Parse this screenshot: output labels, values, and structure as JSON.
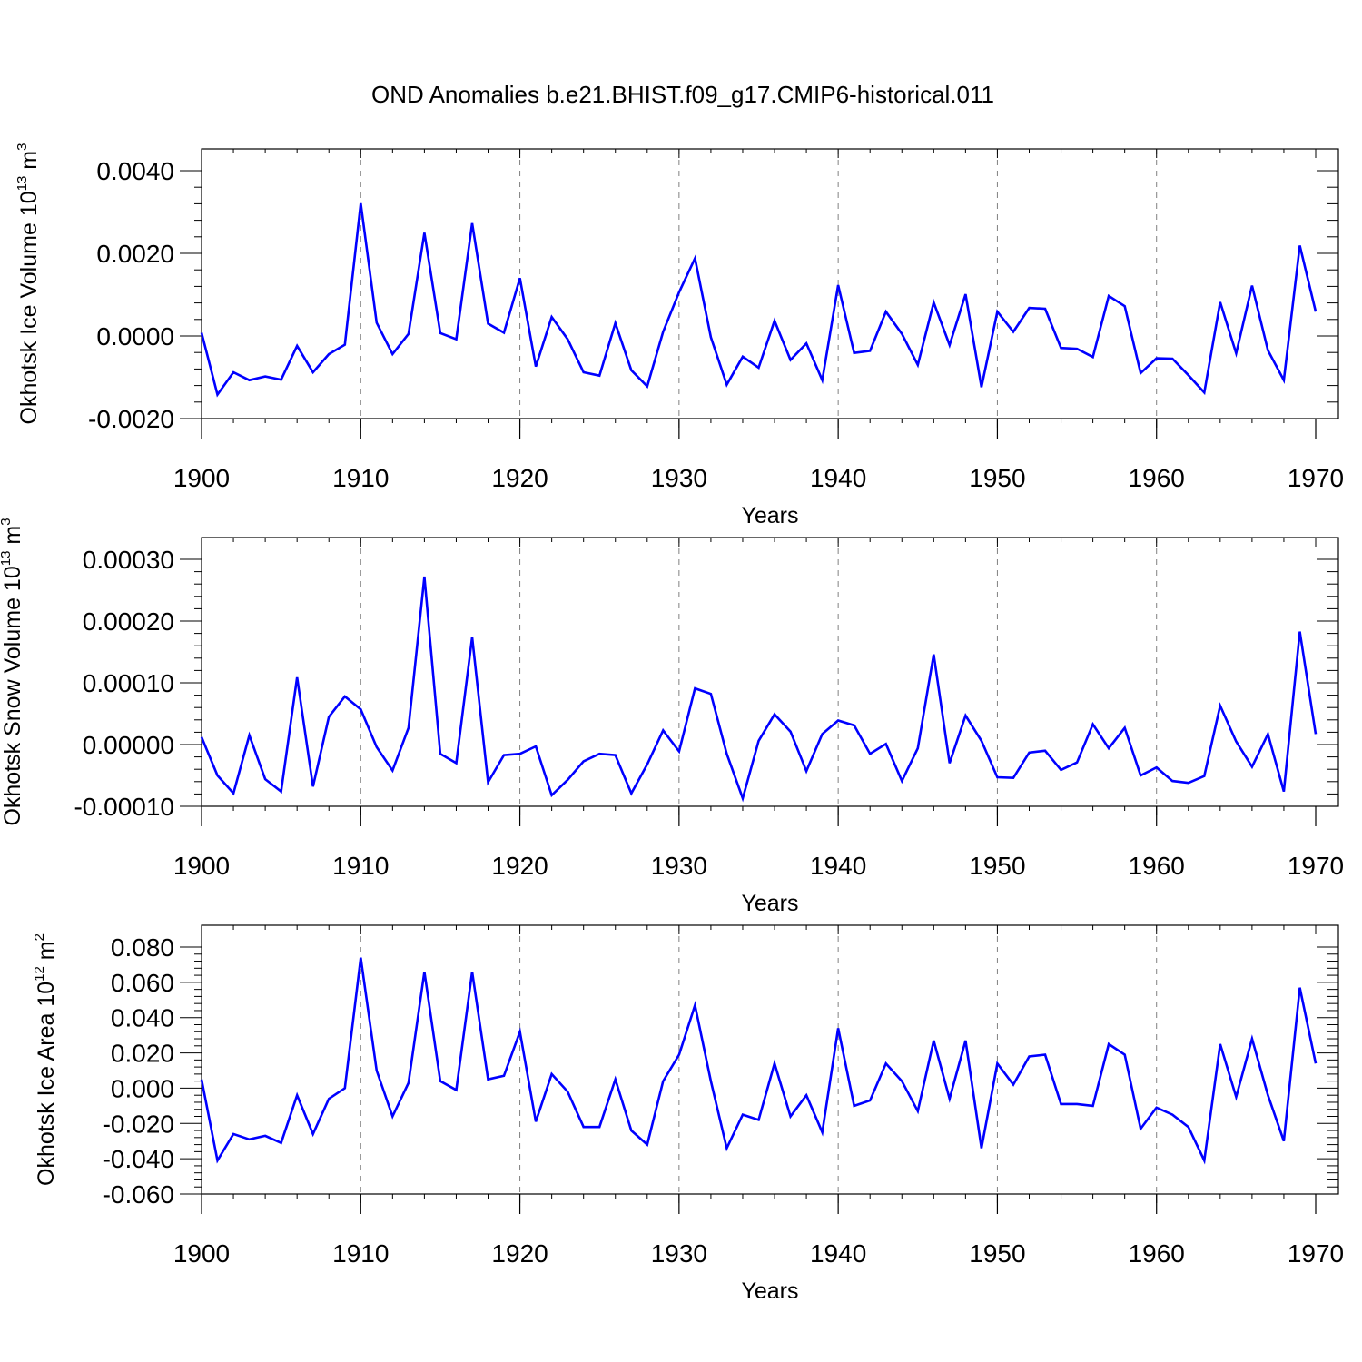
{
  "title": "OND Anomalies b.e21.BHIST.f09_g17.CMIP6-historical.011",
  "colors": {
    "line": "#0000ff",
    "axis": "#000000",
    "grid": "#808080"
  },
  "chart_data": [
    {
      "type": "line",
      "ylabel": "Okhotsk Ice Volume 10",
      "ylabel_sup1": "13",
      "ylabel_unit": " m",
      "ylabel_sup2": "3",
      "xlabel": "Years",
      "xlim": [
        1900,
        1970
      ],
      "ylim": [
        -0.002,
        0.004
      ],
      "xticks": [
        1900,
        1910,
        1920,
        1930,
        1940,
        1950,
        1960,
        1970
      ],
      "xtick_labels": [
        "1900",
        "1910",
        "1920",
        "1930",
        "1940",
        "1950",
        "1960",
        "1970"
      ],
      "yticks": [
        -0.002,
        0.0,
        0.002,
        0.004
      ],
      "ytick_labels": [
        "-0.0020",
        "0.0000",
        "0.0020",
        "0.0040"
      ],
      "grid": "x dashed",
      "x_start": 1900,
      "values": [
        8e-05,
        -0.00142,
        -0.00088,
        -0.00107,
        -0.00098,
        -0.00106,
        -0.00024,
        -0.00088,
        -0.00044,
        -0.00021,
        0.00321,
        0.00032,
        -0.00044,
        5e-05,
        0.0025,
        7e-05,
        -8e-05,
        0.00273,
        0.0003,
        8e-05,
        0.0014,
        -0.00074,
        0.00046,
        -8e-05,
        -0.00088,
        -0.00096,
        0.00031,
        -0.00083,
        -0.00122,
        0.0001,
        0.00106,
        0.00188,
        -3e-05,
        -0.00118,
        -0.0005,
        -0.00077,
        0.00037,
        -0.00058,
        -0.00018,
        -0.00107,
        0.00123,
        -0.00041,
        -0.00036,
        0.00059,
        5e-05,
        -0.0007,
        0.00081,
        -0.00022,
        0.00101,
        -0.00124,
        0.00059,
        0.0001,
        0.00068,
        0.00066,
        -0.00029,
        -0.00031,
        -0.00051,
        0.00097,
        0.00072,
        -0.0009,
        -0.00054,
        -0.00055,
        -0.00095,
        -0.00137,
        0.00082,
        -0.00042,
        0.00122,
        -0.00035,
        -0.00107,
        0.00219,
        0.00059
      ]
    },
    {
      "type": "line",
      "ylabel": "Okhotsk Snow Volume 10",
      "ylabel_sup1": "13",
      "ylabel_unit": " m",
      "ylabel_sup2": "3",
      "xlabel": "Years",
      "xlim": [
        1900,
        1970
      ],
      "ylim": [
        -0.0001,
        0.0003
      ],
      "xticks": [
        1900,
        1910,
        1920,
        1930,
        1940,
        1950,
        1960,
        1970
      ],
      "xtick_labels": [
        "1900",
        "1910",
        "1920",
        "1930",
        "1940",
        "1950",
        "1960",
        "1970"
      ],
      "yticks": [
        -0.0001,
        0.0,
        0.0001,
        0.0002,
        0.0003
      ],
      "ytick_labels": [
        "-0.00010",
        "0.00000",
        "0.00010",
        "0.00020",
        "0.00030"
      ],
      "grid": "x dashed",
      "x_start": 1900,
      "values": [
        1.2e-05,
        -5e-05,
        -7.9e-05,
        1.5e-05,
        -5.6e-05,
        -7.6e-05,
        0.000109,
        -6.8e-05,
        4.5e-05,
        7.8e-05,
        5.7e-05,
        -4e-06,
        -4.2e-05,
        2.7e-05,
        0.000272,
        -1.5e-05,
        -3e-05,
        0.000174,
        -6.1e-05,
        -1.7e-05,
        -1.5e-05,
        -3e-06,
        -8.2e-05,
        -5.7e-05,
        -2.7e-05,
        -1.5e-05,
        -1.7e-05,
        -7.9e-05,
        -3.2e-05,
        2.3e-05,
        -1.1e-05,
        9.1e-05,
        8.2e-05,
        -1.5e-05,
        -8.7e-05,
        6e-06,
        4.9e-05,
        2.1e-05,
        -4.3e-05,
        1.7e-05,
        3.9e-05,
        3.1e-05,
        -1.5e-05,
        1e-06,
        -5.9e-05,
        -6e-06,
        0.000146,
        -3e-05,
        4.7e-05,
        6e-06,
        -5.3e-05,
        -5.4e-05,
        -1.3e-05,
        -1e-05,
        -4.1e-05,
        -2.9e-05,
        3.3e-05,
        -6e-06,
        2.7e-05,
        -5e-05,
        -3.7e-05,
        -5.9e-05,
        -6.2e-05,
        -5.1e-05,
        6.3e-05,
        5e-06,
        -3.6e-05,
        1.7e-05,
        -7.6e-05,
        0.000183,
        1.7e-05
      ]
    },
    {
      "type": "line",
      "ylabel": "Okhotsk Ice Area 10",
      "ylabel_sup1": "12",
      "ylabel_unit": " m",
      "ylabel_sup2": "2",
      "xlabel": "Years",
      "xlim": [
        1900,
        1970
      ],
      "ylim": [
        -0.06,
        0.08
      ],
      "xticks": [
        1900,
        1910,
        1920,
        1930,
        1940,
        1950,
        1960,
        1970
      ],
      "xtick_labels": [
        "1900",
        "1910",
        "1920",
        "1930",
        "1940",
        "1950",
        "1960",
        "1970"
      ],
      "yticks": [
        -0.06,
        -0.04,
        -0.02,
        0.0,
        0.02,
        0.04,
        0.06,
        0.08
      ],
      "ytick_labels": [
        "-0.060",
        "-0.040",
        "-0.020",
        "0.000",
        "0.020",
        "0.040",
        "0.060",
        "0.080"
      ],
      "grid": "x dashed",
      "x_start": 1900,
      "values": [
        0.005,
        -0.041,
        -0.026,
        -0.029,
        -0.027,
        -0.031,
        -0.004,
        -0.026,
        -0.006,
        0.0,
        0.074,
        0.01,
        -0.016,
        0.003,
        0.066,
        0.004,
        -0.001,
        0.066,
        0.005,
        0.007,
        0.032,
        -0.019,
        0.008,
        -0.002,
        -0.022,
        -0.022,
        0.005,
        -0.024,
        -0.032,
        0.004,
        0.019,
        0.047,
        0.004,
        -0.034,
        -0.015,
        -0.018,
        0.014,
        -0.016,
        -0.004,
        -0.025,
        0.034,
        -0.01,
        -0.007,
        0.014,
        0.004,
        -0.013,
        0.027,
        -0.006,
        0.027,
        -0.034,
        0.014,
        0.002,
        0.018,
        0.019,
        -0.009,
        -0.009,
        -0.01,
        0.025,
        0.019,
        -0.023,
        -0.011,
        -0.015,
        -0.022,
        -0.041,
        0.025,
        -0.005,
        0.028,
        -0.004,
        -0.03,
        0.057,
        0.014
      ]
    }
  ]
}
